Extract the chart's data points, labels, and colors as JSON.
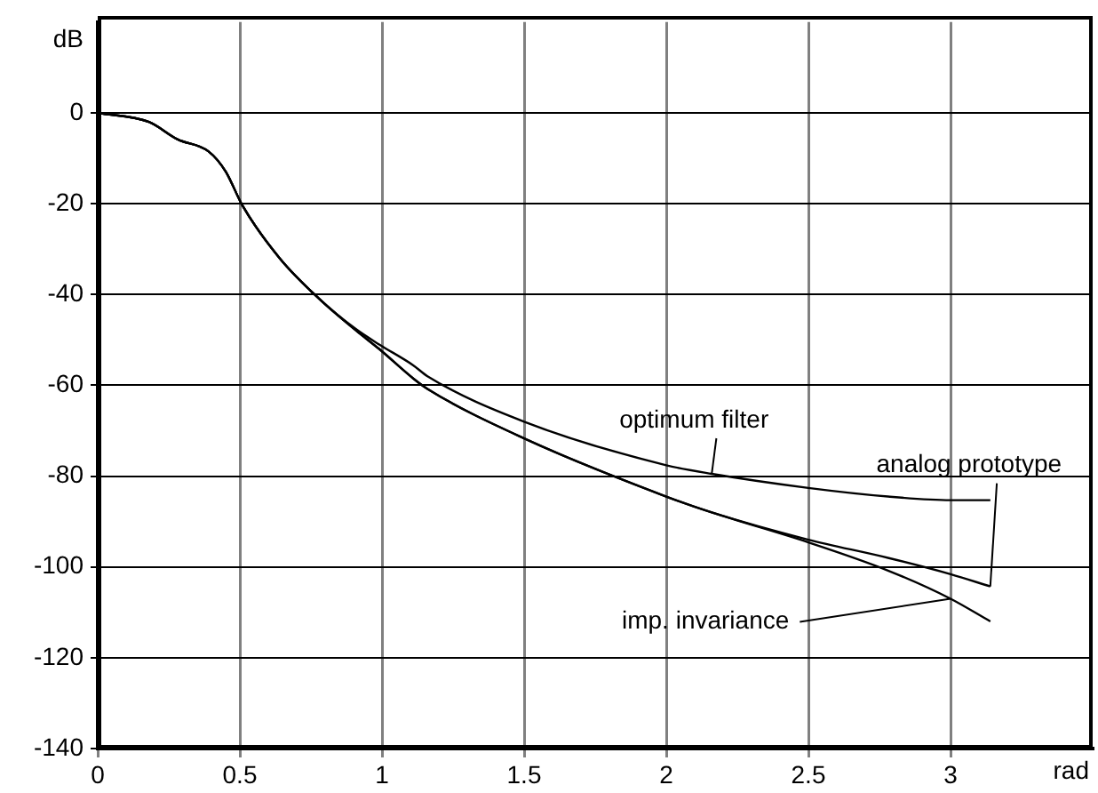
{
  "chart_data": {
    "type": "line",
    "xlabel": "rad",
    "ylabel": "dB",
    "xlim": [
      0,
      3.5
    ],
    "xticks": [
      0,
      0.5,
      1,
      1.5,
      2,
      2.5,
      3
    ],
    "ylim": [
      -140,
      20
    ],
    "yticks": [
      -140,
      -120,
      -100,
      -80,
      -60,
      -40,
      -20,
      0
    ],
    "grid": true,
    "legend": false,
    "marker": "none",
    "line_style": "solid",
    "x": [
      0,
      0.18,
      0.28,
      0.39,
      0.45,
      0.51,
      0.64,
      0.78,
      0.91,
      0.99,
      1.11,
      1.16,
      1.5,
      2,
      2.16,
      2.5,
      2.78,
      3,
      3.14
    ],
    "series": [
      {
        "name": "optimum filter",
        "color": "#000000",
        "values": [
          0,
          -2,
          -5.8,
          -8.5,
          -12.9,
          -20.5,
          -32,
          -41,
          -47.7,
          -51,
          -55.6,
          -58,
          -68,
          -77.6,
          -79.5,
          -82.6,
          -84.5,
          -85.3,
          -85.3
        ]
      },
      {
        "name": "analog prototype",
        "color": "#000000",
        "values": [
          0,
          -2,
          -5.8,
          -8.5,
          -12.9,
          -20.5,
          -32,
          -41,
          -48,
          -52,
          -58.5,
          -60.8,
          -71.7,
          -84.5,
          -88,
          -94,
          -98,
          -101.6,
          -104.3
        ]
      },
      {
        "name": "imp. invariance",
        "color": "#000000",
        "values": [
          0,
          -2,
          -5.8,
          -8.5,
          -12.9,
          -20.5,
          -32,
          -41,
          -48,
          -52,
          -58.5,
          -60.8,
          -71.7,
          -84.5,
          -88,
          -94.6,
          -100.8,
          -107,
          -112
        ]
      }
    ]
  }
}
